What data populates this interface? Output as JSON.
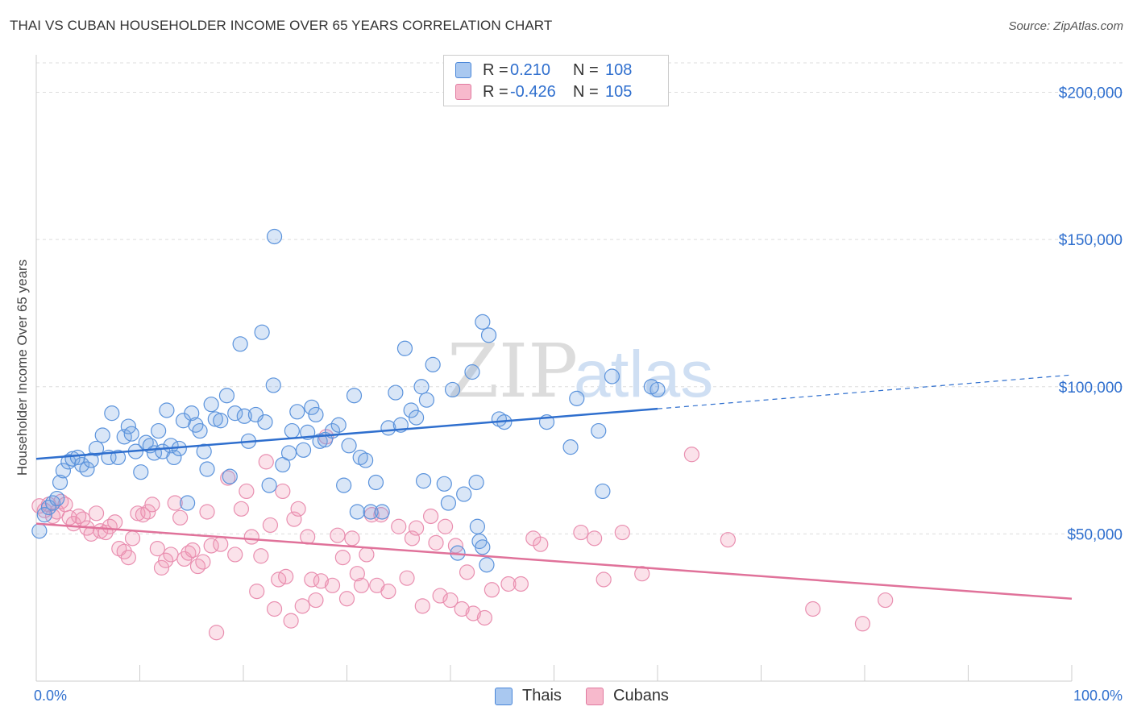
{
  "header": {
    "title": "THAI VS CUBAN HOUSEHOLDER INCOME OVER 65 YEARS CORRELATION CHART",
    "source": "Source: ZipAtlas.com"
  },
  "watermark": {
    "zip": "ZIP",
    "atlas": "atlas"
  },
  "legend": {
    "rows": [
      {
        "r_label": "R =",
        "r_value": "0.210",
        "n_label": "N =",
        "n_value": "108",
        "color": "#a9c8f0",
        "border": "#4a86d8"
      },
      {
        "r_label": "R =",
        "r_value": "-0.426",
        "n_label": "N =",
        "n_value": "105",
        "color": "#f7b9cc",
        "border": "#e07aa0"
      }
    ]
  },
  "bottom_legend": [
    {
      "label": "Thais",
      "color": "#a9c8f0",
      "border": "#4a86d8"
    },
    {
      "label": "Cubans",
      "color": "#f7b9cc",
      "border": "#e07aa0"
    }
  ],
  "colors": {
    "thai_fill": "rgba(120,165,225,0.28)",
    "thai_stroke": "#5b93dc",
    "thai_line": "#2f6fce",
    "cuban_fill": "rgba(240,150,180,0.28)",
    "cuban_stroke": "#e98fb0",
    "cuban_line": "#e0729a",
    "tick_label": "#2f6fce"
  },
  "chart_data": {
    "type": "scatter",
    "title": "THAI VS CUBAN HOUSEHOLDER INCOME OVER 65 YEARS CORRELATION CHART",
    "xlabel": "",
    "ylabel": "Householder Income Over 65 years",
    "xlim": [
      0,
      100
    ],
    "ylim": [
      0,
      210000
    ],
    "x_tick_labels": [
      "0.0%",
      "100.0%"
    ],
    "y_ticks": [
      50000,
      100000,
      150000,
      200000
    ],
    "y_tick_labels": [
      "$50,000",
      "$100,000",
      "$150,000",
      "$200,000"
    ],
    "grid": "horizontal dashed",
    "legend_position": "top-center",
    "series": [
      {
        "name": "Thais",
        "trend": {
          "x0": 0,
          "y0": 75500,
          "x1": 60,
          "y1": 92500,
          "dash_to_x": 100,
          "dash_to_y": 104000
        },
        "points": [
          [
            0.3,
            51000
          ],
          [
            0.8,
            56500
          ],
          [
            1.2,
            59000
          ],
          [
            1.6,
            60500
          ],
          [
            2.0,
            62000
          ],
          [
            2.3,
            67500
          ],
          [
            2.6,
            71500
          ],
          [
            3.1,
            74500
          ],
          [
            3.5,
            75500
          ],
          [
            4.0,
            76000
          ],
          [
            4.4,
            73500
          ],
          [
            4.9,
            72000
          ],
          [
            5.3,
            75000
          ],
          [
            5.8,
            79000
          ],
          [
            6.4,
            83500
          ],
          [
            7.0,
            76000
          ],
          [
            7.3,
            91000
          ],
          [
            7.9,
            76000
          ],
          [
            8.5,
            83000
          ],
          [
            8.9,
            86500
          ],
          [
            9.2,
            84000
          ],
          [
            9.6,
            78000
          ],
          [
            10.1,
            71000
          ],
          [
            10.6,
            81000
          ],
          [
            11.0,
            80000
          ],
          [
            11.4,
            77500
          ],
          [
            11.8,
            85000
          ],
          [
            12.2,
            78000
          ],
          [
            12.6,
            92000
          ],
          [
            13.0,
            80000
          ],
          [
            13.3,
            76000
          ],
          [
            13.8,
            79000
          ],
          [
            14.2,
            88500
          ],
          [
            14.6,
            60500
          ],
          [
            15.0,
            91000
          ],
          [
            15.4,
            87000
          ],
          [
            15.8,
            85000
          ],
          [
            16.2,
            78000
          ],
          [
            16.5,
            72000
          ],
          [
            16.9,
            94000
          ],
          [
            17.3,
            89000
          ],
          [
            17.8,
            88500
          ],
          [
            18.4,
            97000
          ],
          [
            18.7,
            69500
          ],
          [
            19.2,
            91000
          ],
          [
            19.7,
            114500
          ],
          [
            20.1,
            90000
          ],
          [
            20.5,
            81500
          ],
          [
            21.2,
            90500
          ],
          [
            21.8,
            118500
          ],
          [
            22.1,
            88000
          ],
          [
            22.5,
            66500
          ],
          [
            23.0,
            151000
          ],
          [
            23.8,
            73500
          ],
          [
            24.4,
            77500
          ],
          [
            24.7,
            85000
          ],
          [
            25.2,
            91500
          ],
          [
            25.8,
            78500
          ],
          [
            26.2,
            84500
          ],
          [
            26.6,
            93000
          ],
          [
            27.0,
            90500
          ],
          [
            27.4,
            81500
          ],
          [
            27.9,
            82000
          ],
          [
            28.6,
            85000
          ],
          [
            29.2,
            87000
          ],
          [
            29.7,
            66500
          ],
          [
            30.2,
            80000
          ],
          [
            30.7,
            97000
          ],
          [
            31.3,
            76000
          ],
          [
            31.8,
            75000
          ],
          [
            32.3,
            57500
          ],
          [
            32.8,
            67500
          ],
          [
            33.4,
            57500
          ],
          [
            34.0,
            86000
          ],
          [
            34.7,
            98000
          ],
          [
            35.2,
            87000
          ],
          [
            35.6,
            113000
          ],
          [
            36.2,
            92000
          ],
          [
            36.7,
            89500
          ],
          [
            37.2,
            100000
          ],
          [
            37.7,
            95500
          ],
          [
            38.3,
            107500
          ],
          [
            39.4,
            67000
          ],
          [
            39.8,
            60500
          ],
          [
            40.2,
            99000
          ],
          [
            40.7,
            43500
          ],
          [
            41.3,
            63500
          ],
          [
            42.5,
            67500
          ],
          [
            43.1,
            122000
          ],
          [
            43.7,
            117500
          ],
          [
            42.1,
            105000
          ],
          [
            43.5,
            39500
          ],
          [
            42.6,
            52500
          ],
          [
            42.8,
            47500
          ],
          [
            43.1,
            45500
          ],
          [
            44.7,
            89000
          ],
          [
            45.2,
            88000
          ],
          [
            49.3,
            88000
          ],
          [
            51.6,
            79500
          ],
          [
            52.2,
            96000
          ],
          [
            54.3,
            85000
          ],
          [
            54.7,
            64500
          ],
          [
            55.6,
            103500
          ],
          [
            60.0,
            99000
          ],
          [
            59.4,
            100000
          ],
          [
            37.4,
            68000
          ],
          [
            31.0,
            57500
          ],
          [
            22.9,
            100500
          ]
        ]
      },
      {
        "name": "Cubans",
        "trend": {
          "x0": 0,
          "y0": 53500,
          "x1": 100,
          "y1": 28000
        },
        "points": [
          [
            0.3,
            59500
          ],
          [
            0.8,
            58000
          ],
          [
            1.2,
            60000
          ],
          [
            1.6,
            56000
          ],
          [
            2.0,
            57500
          ],
          [
            2.4,
            61000
          ],
          [
            2.8,
            60000
          ],
          [
            3.2,
            55500
          ],
          [
            3.6,
            53500
          ],
          [
            4.1,
            56000
          ],
          [
            4.5,
            55000
          ],
          [
            4.9,
            52000
          ],
          [
            5.3,
            50000
          ],
          [
            5.8,
            57000
          ],
          [
            6.2,
            51000
          ],
          [
            6.7,
            50500
          ],
          [
            7.1,
            52500
          ],
          [
            7.6,
            54000
          ],
          [
            8.0,
            45000
          ],
          [
            8.5,
            44000
          ],
          [
            8.9,
            42000
          ],
          [
            9.3,
            48500
          ],
          [
            9.8,
            57000
          ],
          [
            10.3,
            56500
          ],
          [
            10.8,
            57500
          ],
          [
            11.2,
            60000
          ],
          [
            11.7,
            45000
          ],
          [
            12.1,
            38500
          ],
          [
            12.5,
            41000
          ],
          [
            13.0,
            43000
          ],
          [
            13.4,
            60500
          ],
          [
            13.9,
            55500
          ],
          [
            14.3,
            41500
          ],
          [
            14.7,
            43500
          ],
          [
            15.1,
            44500
          ],
          [
            15.6,
            39000
          ],
          [
            16.1,
            40500
          ],
          [
            16.5,
            57500
          ],
          [
            16.9,
            46000
          ],
          [
            17.4,
            16500
          ],
          [
            17.8,
            46500
          ],
          [
            18.5,
            69000
          ],
          [
            19.2,
            43000
          ],
          [
            19.8,
            58500
          ],
          [
            20.3,
            64500
          ],
          [
            20.8,
            49000
          ],
          [
            21.3,
            30500
          ],
          [
            21.7,
            42500
          ],
          [
            22.2,
            74500
          ],
          [
            22.6,
            53000
          ],
          [
            23.0,
            24500
          ],
          [
            23.4,
            34500
          ],
          [
            23.8,
            64500
          ],
          [
            24.1,
            35500
          ],
          [
            24.6,
            20500
          ],
          [
            24.9,
            55000
          ],
          [
            25.3,
            58500
          ],
          [
            25.7,
            25500
          ],
          [
            26.2,
            49000
          ],
          [
            26.6,
            34500
          ],
          [
            27.0,
            27500
          ],
          [
            27.5,
            34000
          ],
          [
            28.0,
            83000
          ],
          [
            28.6,
            32500
          ],
          [
            29.1,
            49500
          ],
          [
            29.6,
            42000
          ],
          [
            30.0,
            28000
          ],
          [
            30.5,
            48500
          ],
          [
            31.0,
            36500
          ],
          [
            31.4,
            32500
          ],
          [
            31.9,
            43000
          ],
          [
            32.4,
            56500
          ],
          [
            32.9,
            32500
          ],
          [
            33.3,
            56500
          ],
          [
            34.0,
            30500
          ],
          [
            35.0,
            52500
          ],
          [
            35.8,
            35000
          ],
          [
            36.3,
            48500
          ],
          [
            36.7,
            52000
          ],
          [
            37.3,
            25500
          ],
          [
            38.1,
            56000
          ],
          [
            38.6,
            47000
          ],
          [
            39.0,
            29000
          ],
          [
            39.5,
            52500
          ],
          [
            40.0,
            27500
          ],
          [
            40.5,
            46000
          ],
          [
            41.1,
            24500
          ],
          [
            41.6,
            37000
          ],
          [
            42.2,
            23000
          ],
          [
            43.3,
            21500
          ],
          [
            44.0,
            31000
          ],
          [
            45.6,
            33000
          ],
          [
            46.8,
            33000
          ],
          [
            48.0,
            48500
          ],
          [
            48.7,
            46500
          ],
          [
            52.6,
            50500
          ],
          [
            53.9,
            48500
          ],
          [
            54.8,
            34500
          ],
          [
            56.6,
            50500
          ],
          [
            58.5,
            36500
          ],
          [
            63.3,
            77000
          ],
          [
            66.8,
            48000
          ],
          [
            75.0,
            24500
          ],
          [
            79.8,
            19500
          ],
          [
            82.0,
            27500
          ]
        ]
      }
    ]
  }
}
